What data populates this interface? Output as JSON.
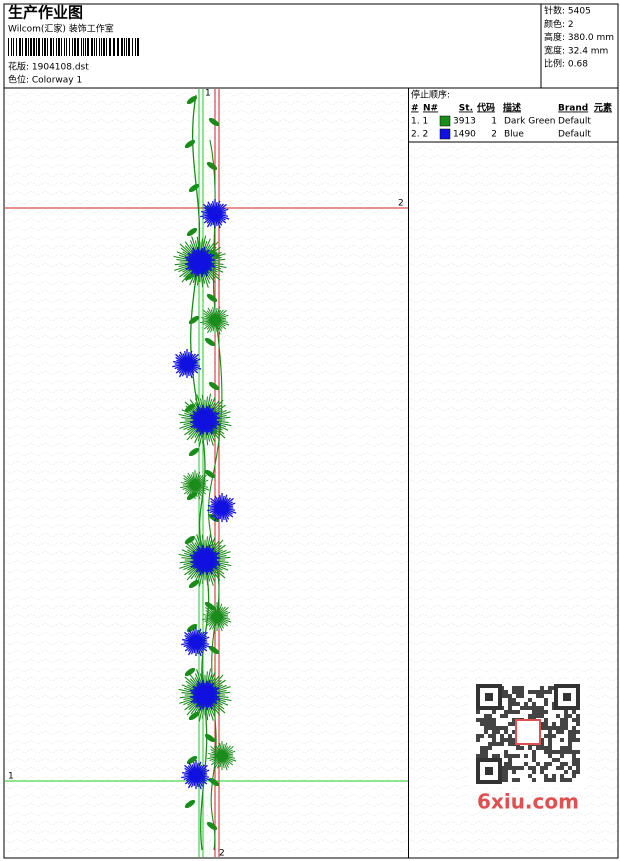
{
  "header": {
    "title": "生产作业图",
    "studio": "Wilcom(汇家) 装饰工作室",
    "design_file": "花版: 1904108.dst",
    "colorway": "色位: Colorway 1"
  },
  "info": [
    "针数: 5405",
    "颜色: 2",
    "高度: 380.0 mm",
    "宽度: 32.4 mm",
    "比例: 0.68"
  ],
  "stop_sequence": {
    "title": "停止顺序:",
    "columns": [
      "#",
      "N#",
      "St.",
      "代码",
      "描述",
      "Brand",
      "元素"
    ],
    "rows": [
      {
        "index": "1. 1",
        "color": "#1a8c1a",
        "stitches": 3913,
        "code": 1,
        "description": "Dark Green",
        "brand": "Default"
      },
      {
        "index": "2. 2",
        "color": "#1010e0",
        "stitches": 1490,
        "code": 2,
        "description": "Blue",
        "brand": "Default"
      }
    ]
  },
  "guides": {
    "horizontal": [
      {
        "label": "2"
      },
      {
        "label": "1"
      }
    ],
    "vertical": [
      {
        "label": "1"
      },
      {
        "label": "2"
      }
    ]
  },
  "watermark": "6xiu.com"
}
